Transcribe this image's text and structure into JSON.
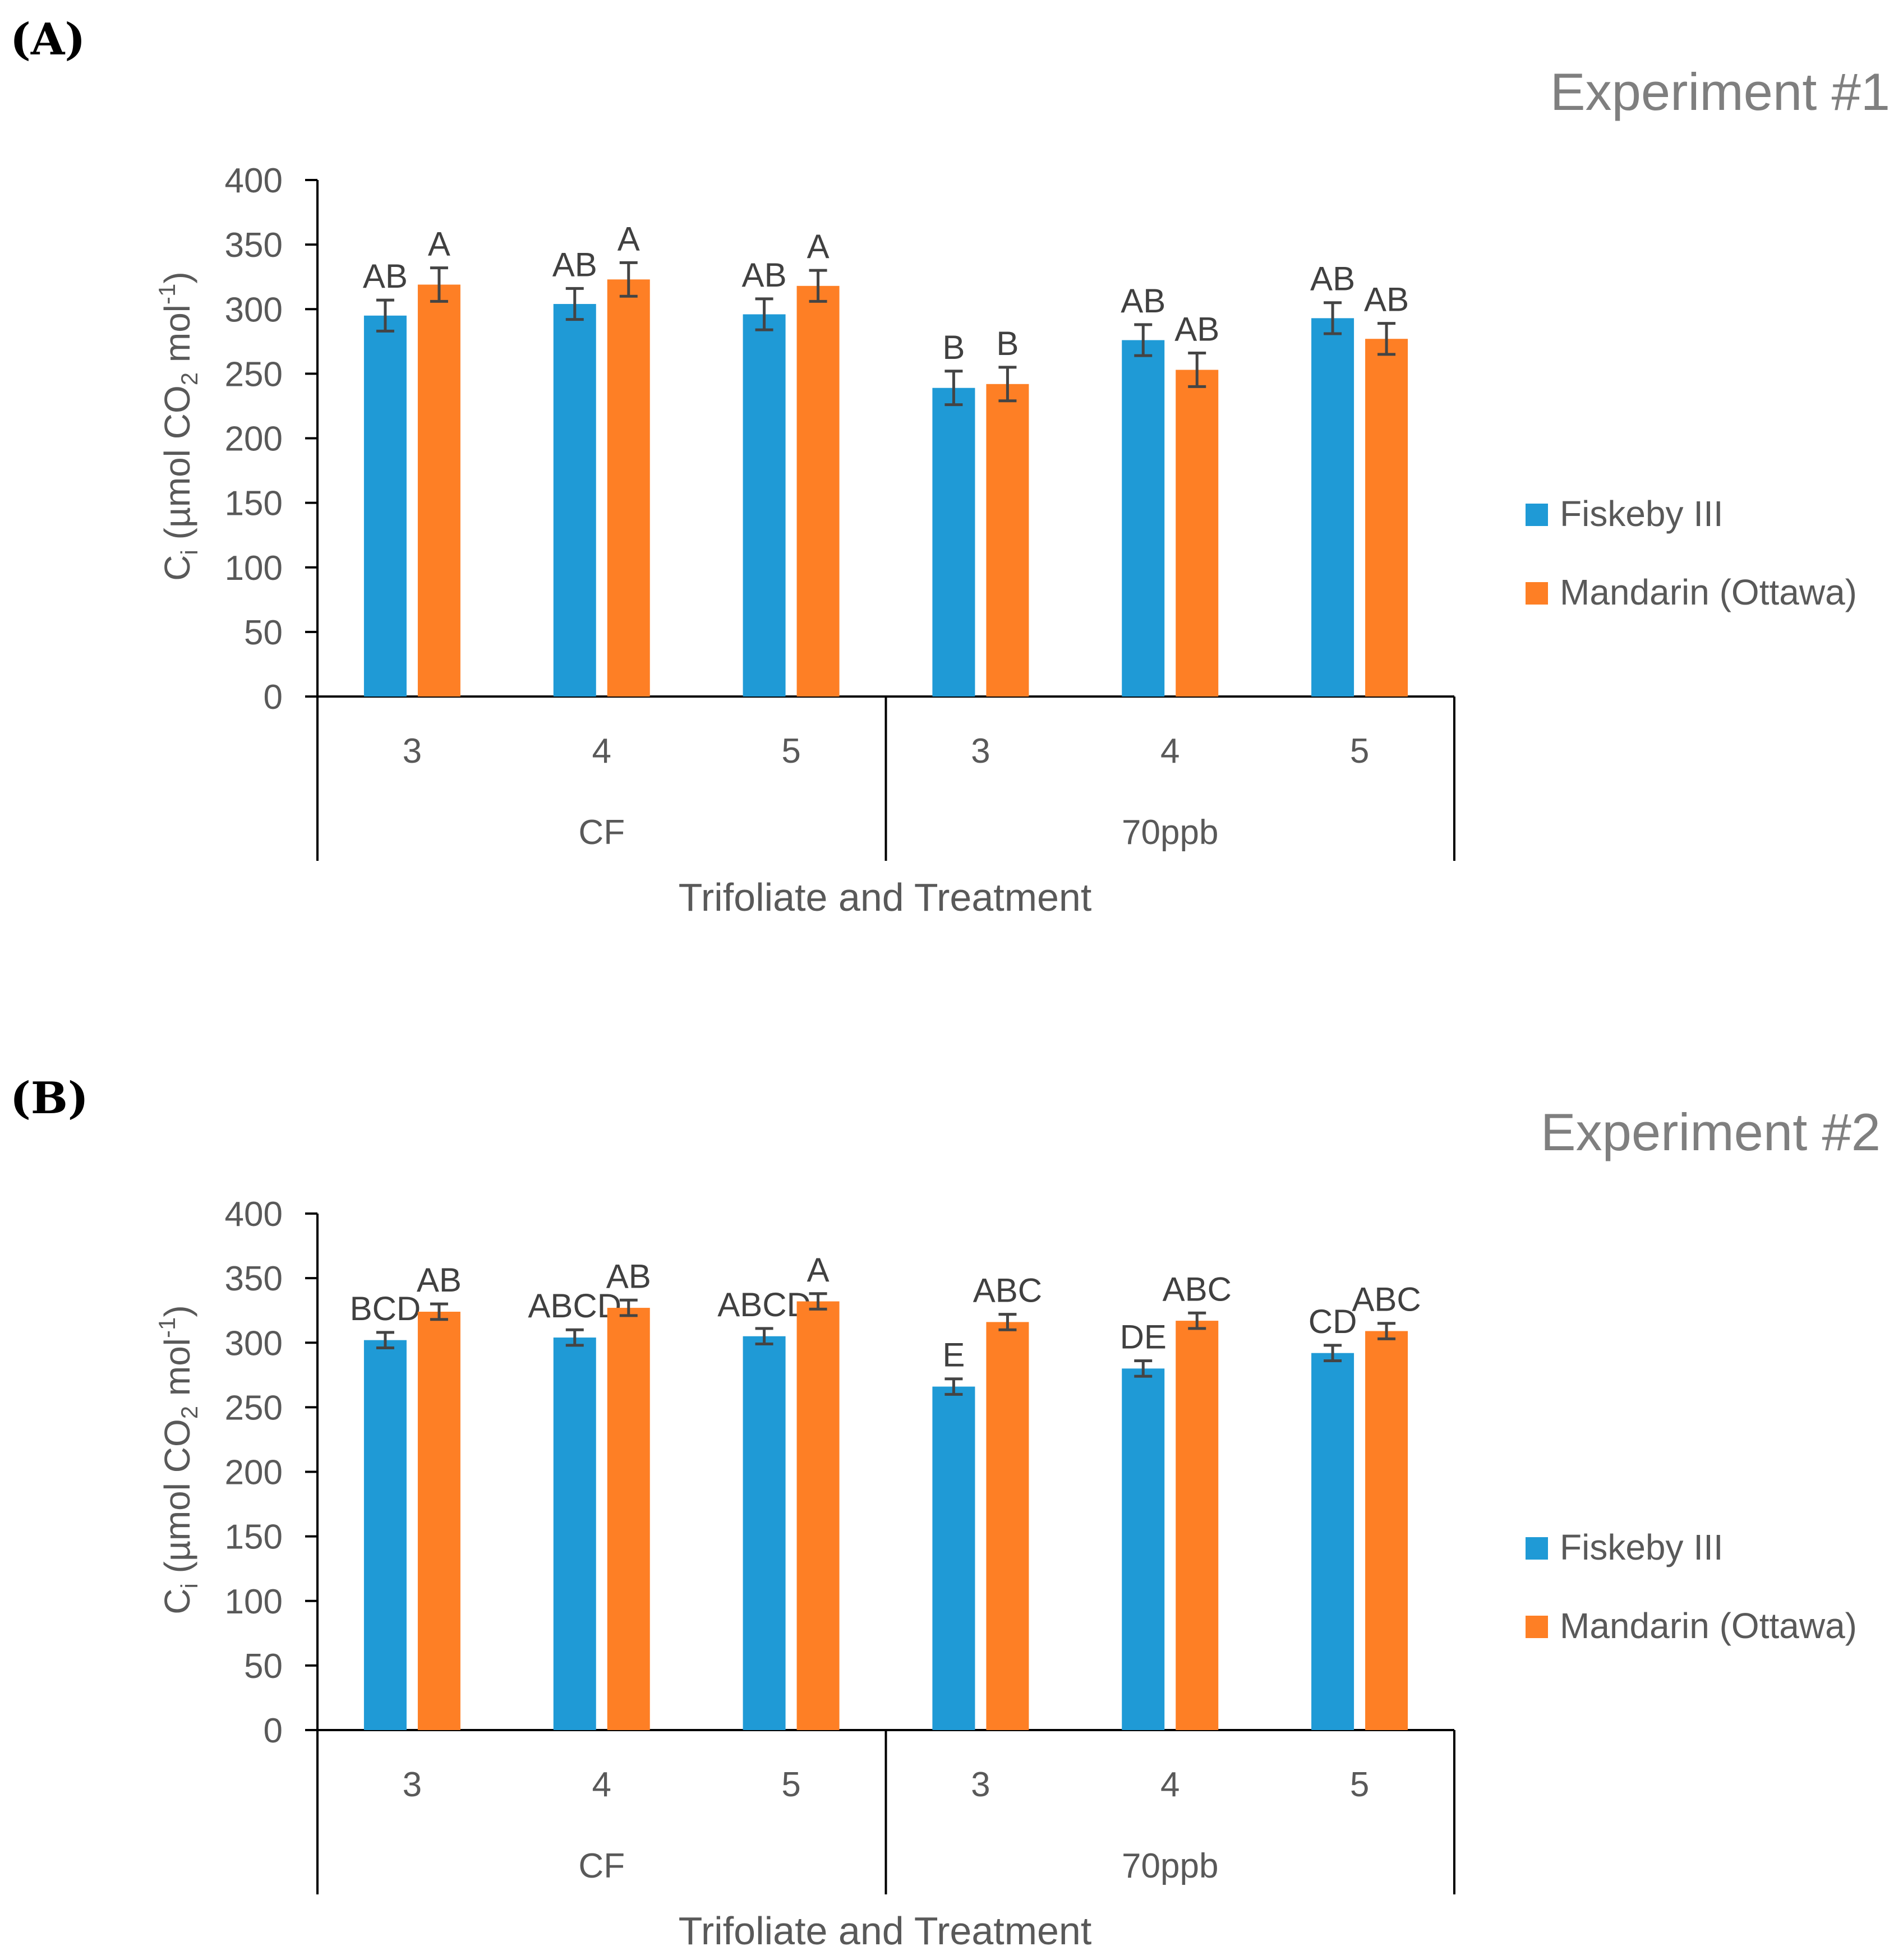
{
  "chart_data": [
    {
      "type": "bar",
      "panel_label": "(A)",
      "title": "Experiment #1",
      "ylabel_main": "C",
      "ylabel_sub": "i",
      "ylabel_mid": " (µmol CO",
      "ylabel_sub2": "2",
      "ylabel_end": " mol",
      "ylabel_sup": "-1",
      "ylabel_close": ")",
      "xlabel": "Trifoliate and Treatment",
      "ylim": [
        0,
        400
      ],
      "yticks": [
        "0",
        "50",
        "100",
        "150",
        "200",
        "250",
        "300",
        "350",
        "400"
      ],
      "categories": [
        "3",
        "4",
        "5",
        "3",
        "4",
        "5"
      ],
      "groups": [
        "CF",
        "70ppb"
      ],
      "series": [
        {
          "name": "Fiskeby III",
          "color": "#1f9ad6",
          "values": [
            295,
            304,
            296,
            239,
            276,
            293
          ],
          "errors": [
            12,
            12,
            12,
            13,
            12,
            12
          ],
          "letters": [
            "AB",
            "AB",
            "AB",
            "B",
            "AB",
            "AB"
          ]
        },
        {
          "name": "Mandarin (Ottawa)",
          "color": "#fe7f25",
          "values": [
            319,
            323,
            318,
            242,
            253,
            277
          ],
          "errors": [
            13,
            13,
            12,
            13,
            13,
            12
          ],
          "letters": [
            "A",
            "A",
            "A",
            "B",
            "AB",
            "AB"
          ]
        }
      ]
    },
    {
      "type": "bar",
      "panel_label": "(B)",
      "title": "Experiment #2",
      "ylabel_main": "C",
      "ylabel_sub": "i",
      "ylabel_mid": " (µmol CO",
      "ylabel_sub2": "2",
      "ylabel_end": " mol",
      "ylabel_sup": "-1",
      "ylabel_close": ")",
      "xlabel": "Trifoliate and Treatment",
      "ylim": [
        0,
        400
      ],
      "yticks": [
        "0",
        "50",
        "100",
        "150",
        "200",
        "250",
        "300",
        "350",
        "400"
      ],
      "categories": [
        "3",
        "4",
        "5",
        "3",
        "4",
        "5"
      ],
      "groups": [
        "CF",
        "70ppb"
      ],
      "series": [
        {
          "name": "Fiskeby III",
          "color": "#1f9ad6",
          "values": [
            302,
            304,
            305,
            266,
            280,
            292
          ],
          "errors": [
            6,
            6,
            6,
            6,
            6,
            6
          ],
          "letters": [
            "BCD",
            "ABCD",
            "ABCD",
            "E",
            "DE",
            "CD"
          ]
        },
        {
          "name": "Mandarin (Ottawa)",
          "color": "#fe7f25",
          "values": [
            324,
            327,
            332,
            316,
            317,
            309
          ],
          "errors": [
            6,
            6,
            6,
            6,
            6,
            6
          ],
          "letters": [
            "AB",
            "AB",
            "A",
            "ABC",
            "ABC",
            "ABC"
          ]
        }
      ]
    }
  ]
}
